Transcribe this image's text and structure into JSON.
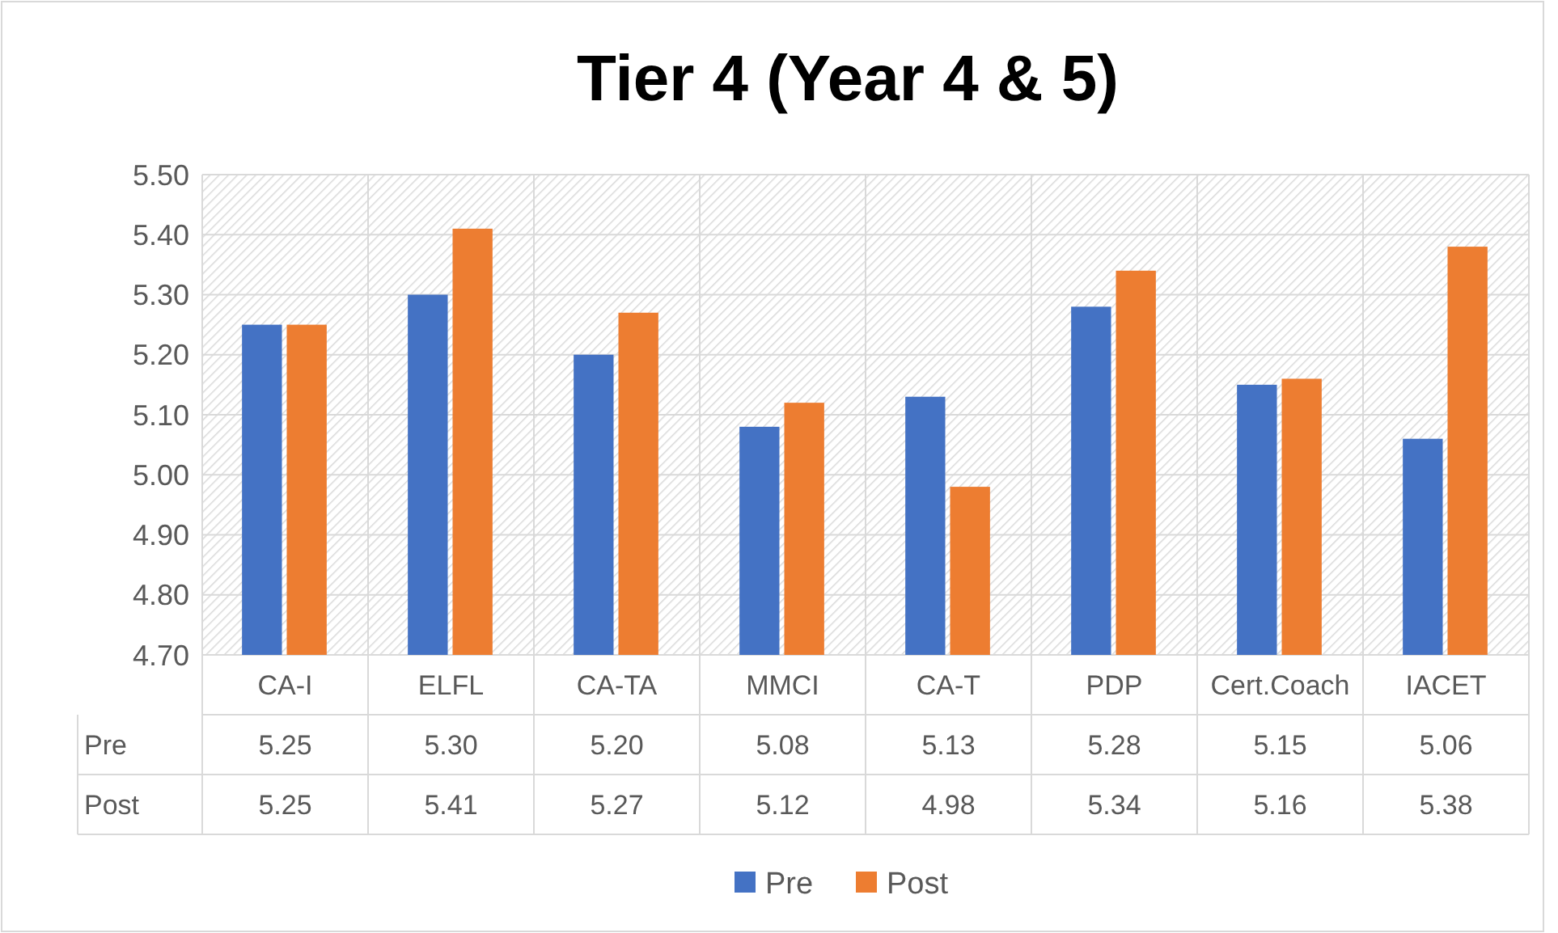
{
  "chart_data": {
    "type": "bar",
    "title": "Tier 4 (Year 4 & 5)",
    "categories": [
      "CA-I",
      "ELFL",
      "CA-TA",
      "MMCI",
      "CA-T",
      "PDP",
      "Cert.Coach",
      "IACET"
    ],
    "series": [
      {
        "name": "Pre",
        "color": "#4472c4",
        "values": [
          5.25,
          5.3,
          5.2,
          5.08,
          5.13,
          5.28,
          5.15,
          5.06
        ],
        "value_labels": [
          "5.25",
          "5.30",
          "5.20",
          "5.08",
          "5.13",
          "5.28",
          "5.15",
          "5.06"
        ]
      },
      {
        "name": "Post",
        "color": "#ed7d31",
        "values": [
          5.25,
          5.41,
          5.27,
          5.12,
          4.98,
          5.34,
          5.16,
          5.38
        ],
        "value_labels": [
          "5.25",
          "5.41",
          "5.27",
          "5.12",
          "4.98",
          "5.34",
          "5.16",
          "5.38"
        ]
      }
    ],
    "ylim": [
      4.7,
      5.5
    ],
    "yticks": [
      {
        "value": 4.7,
        "label": "4.70"
      },
      {
        "value": 4.8,
        "label": "4.80"
      },
      {
        "value": 4.9,
        "label": "4.90"
      },
      {
        "value": 5.0,
        "label": "5.00"
      },
      {
        "value": 5.1,
        "label": "5.10"
      },
      {
        "value": 5.2,
        "label": "5.20"
      },
      {
        "value": 5.3,
        "label": "5.30"
      },
      {
        "value": 5.4,
        "label": "5.40"
      },
      {
        "value": 5.5,
        "label": "5.50"
      }
    ],
    "grid": "y",
    "legend": "bottom"
  }
}
